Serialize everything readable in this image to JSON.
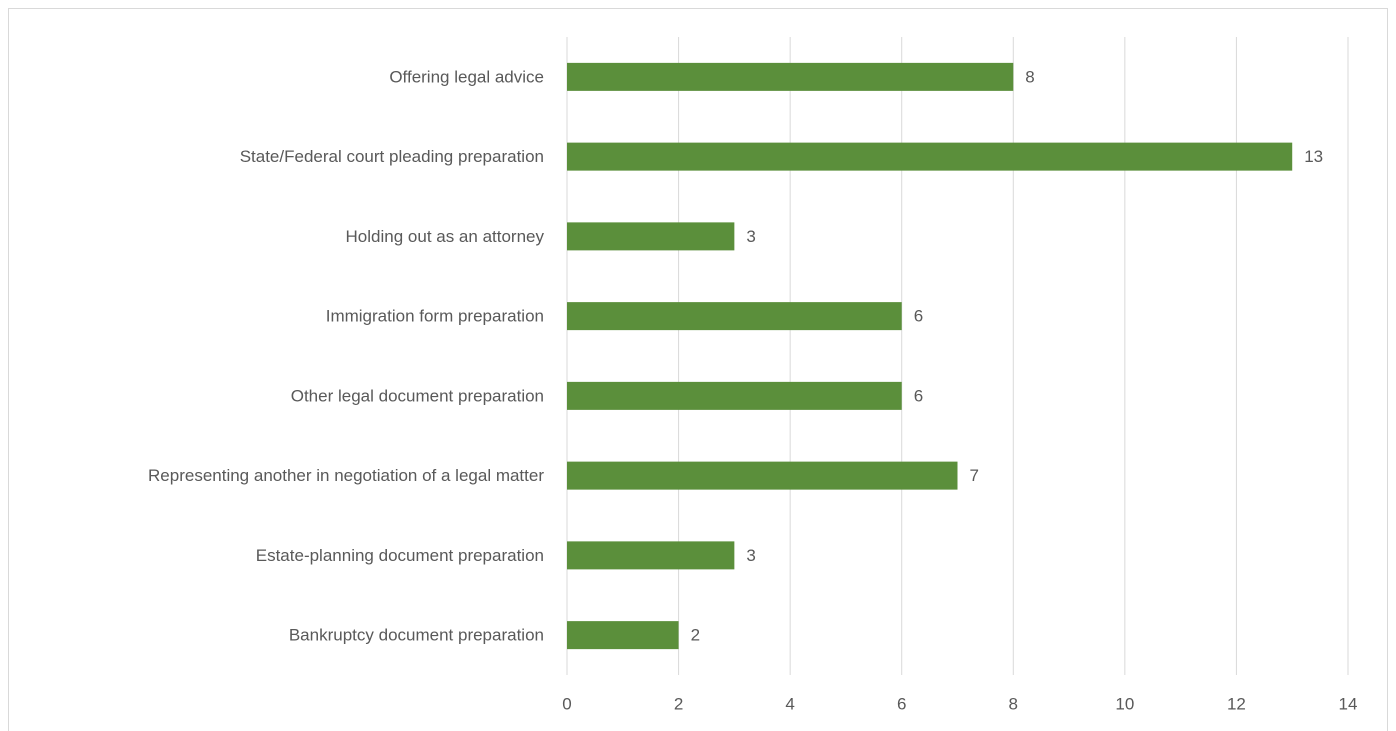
{
  "chart_data": {
    "type": "barh",
    "categories": [
      "Offering legal advice",
      "State/Federal court pleading preparation",
      "Holding out as an attorney",
      "Immigration form preparation",
      "Other legal document preparation",
      "Representing another in negotiation of a legal matter",
      "Estate-planning document preparation",
      "Bankruptcy document preparation"
    ],
    "values": [
      8,
      13,
      3,
      6,
      6,
      7,
      3,
      2
    ],
    "color": "#5b8f3b",
    "xlim": [
      0,
      14
    ],
    "xticks": [
      0,
      2,
      4,
      6,
      8,
      10,
      12,
      14
    ],
    "grid": true
  }
}
